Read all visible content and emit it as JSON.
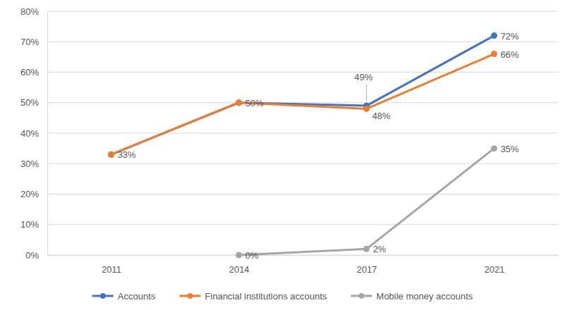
{
  "chart_data": {
    "type": "line",
    "categories": [
      "2011",
      "2014",
      "2017",
      "2021"
    ],
    "series": [
      {
        "name": "Accounts",
        "color": "#4472c4",
        "marker": "circle",
        "line_style": "solid",
        "values": [
          33,
          50,
          49,
          72
        ],
        "value_labels": [
          null,
          null,
          "49%",
          "72%"
        ]
      },
      {
        "name": "Financial institutions accounts",
        "color": "#ed7d31",
        "marker": "circle",
        "line_style": "solid",
        "values": [
          33,
          50,
          48,
          66
        ],
        "value_labels": [
          "33%",
          "50%",
          "48%",
          "66%"
        ]
      },
      {
        "name": "Mobile money accounts",
        "color": "#a5a5a5",
        "marker": "circle",
        "line_style": "solid",
        "values": [
          null,
          0,
          2,
          35
        ],
        "value_labels": [
          null,
          "0%",
          "2%",
          "35%"
        ]
      }
    ],
    "ylim": [
      0,
      80
    ],
    "yticks": [
      {
        "value": 0,
        "label": "0%"
      },
      {
        "value": 10,
        "label": "10%"
      },
      {
        "value": 20,
        "label": "20%"
      },
      {
        "value": 30,
        "label": "30%"
      },
      {
        "value": 40,
        "label": "40%"
      },
      {
        "value": 50,
        "label": "50%"
      },
      {
        "value": 60,
        "label": "60%"
      },
      {
        "value": 70,
        "label": "70%"
      },
      {
        "value": 80,
        "label": "80%"
      }
    ],
    "grid": true,
    "legend": "bottom",
    "data_labels": true
  }
}
